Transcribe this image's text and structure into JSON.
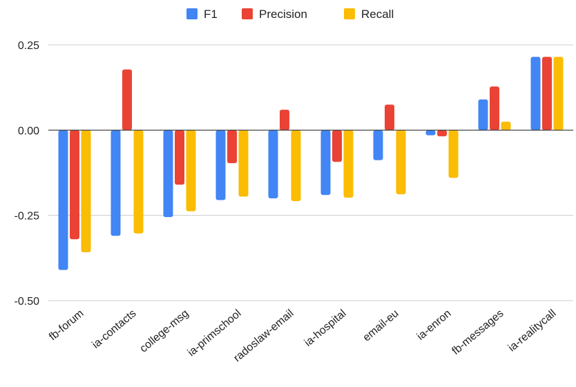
{
  "chart_data": {
    "type": "bar",
    "categories": [
      "fb-forum",
      "ia-contacts",
      "college-msg",
      "ia-primschool",
      "radoslaw-email",
      "ia-hospital",
      "email-eu",
      "ia-enron",
      "fb-messages",
      "ia-realitycall"
    ],
    "series": [
      {
        "name": "F1",
        "color": "#4285F4",
        "values": [
          -0.41,
          -0.31,
          -0.255,
          -0.205,
          -0.2,
          -0.19,
          -0.088,
          -0.015,
          0.09,
          0.215
        ]
      },
      {
        "name": "Precision",
        "color": "#EA4335",
        "values": [
          -0.32,
          0.178,
          -0.16,
          -0.097,
          0.06,
          -0.093,
          0.075,
          -0.018,
          0.128,
          0.215
        ]
      },
      {
        "name": "Recall",
        "color": "#FBBC04",
        "values": [
          -0.358,
          -0.303,
          -0.238,
          -0.195,
          -0.208,
          -0.198,
          -0.188,
          -0.14,
          0.025,
          0.215
        ]
      }
    ],
    "title": "",
    "xlabel": "",
    "ylabel": "",
    "ylim": [
      -0.5,
      0.25
    ],
    "yticks": [
      "0.25",
      "0.00",
      "-0.25",
      "-0.50"
    ],
    "ytick_values": [
      0.25,
      0,
      -0.25,
      -0.5
    ],
    "grid": true,
    "legend_position": "top-center"
  }
}
